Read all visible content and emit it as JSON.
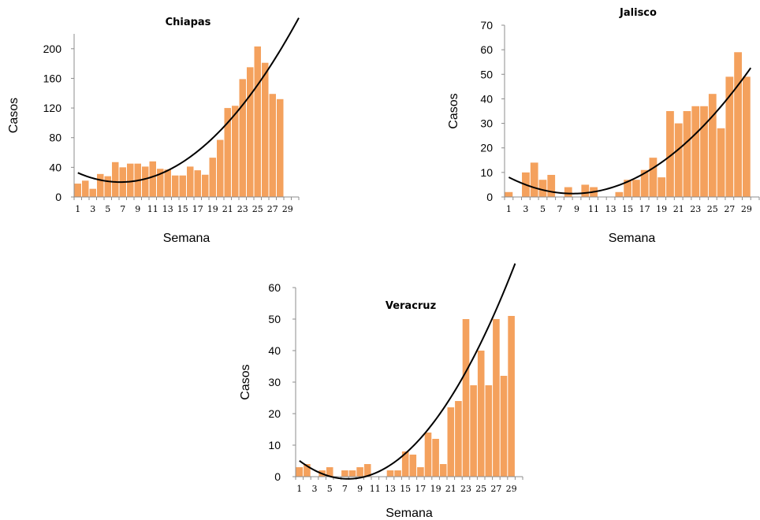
{
  "chart_data": [
    {
      "type": "bar",
      "title": "Chiapas",
      "xlabel": "Semana",
      "ylabel": "Casos",
      "ylim": [
        0,
        220
      ],
      "yticks": [
        0,
        40,
        80,
        120,
        160,
        200
      ],
      "xtick_labels": [
        "1",
        "3",
        "5",
        "7",
        "9",
        "11",
        "13",
        "15",
        "17",
        "19",
        "21",
        "23",
        "25",
        "27",
        "29"
      ],
      "weeks": [
        1,
        2,
        3,
        4,
        5,
        6,
        7,
        8,
        9,
        10,
        11,
        12,
        13,
        14,
        15,
        16,
        17,
        18,
        19,
        20,
        21,
        22,
        23,
        24,
        25,
        26,
        27,
        28
      ],
      "values": [
        18,
        22,
        11,
        31,
        28,
        47,
        40,
        45,
        45,
        41,
        48,
        38,
        37,
        29,
        29,
        41,
        36,
        30,
        53,
        77,
        120,
        123,
        159,
        175,
        203,
        181,
        139,
        132
      ],
      "trendline": {
        "type": "polynomial-2",
        "from_week": 1,
        "to_week": 30.5,
        "coef": [
          37.4,
          -5.2,
          0.39
        ]
      },
      "bar_color": "#f4a15d"
    },
    {
      "type": "bar",
      "title": "Jalisco",
      "xlabel": "Semana",
      "ylabel": "Casos",
      "ylim": [
        0,
        70
      ],
      "yticks": [
        0,
        10,
        20,
        30,
        40,
        50,
        60,
        70
      ],
      "xtick_labels": [
        "1",
        "3",
        "5",
        "7",
        "9",
        "11",
        "13",
        "15",
        "17",
        "19",
        "21",
        "23",
        "25",
        "27",
        "29"
      ],
      "weeks": [
        1,
        2,
        3,
        4,
        5,
        6,
        7,
        8,
        9,
        10,
        11,
        12,
        13,
        14,
        15,
        16,
        17,
        18,
        19,
        20,
        21,
        22,
        23,
        24,
        25,
        26,
        27,
        28,
        29
      ],
      "values": [
        2,
        0,
        10,
        14,
        7,
        9,
        0,
        4,
        0,
        5,
        4,
        0,
        0,
        2,
        7,
        7,
        11,
        16,
        8,
        35,
        30,
        35,
        37,
        37,
        42,
        28,
        49,
        59,
        49
      ],
      "trendline": {
        "type": "polynomial-2",
        "from_week": 1,
        "to_week": 29.5,
        "coef": [
          9.92,
          -1.996,
          0.1167
        ]
      },
      "bar_color": "#f4a15d"
    },
    {
      "type": "bar",
      "title": "Veracruz",
      "xlabel": "Semana",
      "ylabel": "Casos",
      "ylim": [
        0,
        60
      ],
      "yticks": [
        0,
        10,
        20,
        30,
        40,
        50,
        60
      ],
      "xtick_labels": [
        "1",
        "3",
        "5",
        "7",
        "9",
        "11",
        "13",
        "15",
        "17",
        "19",
        "21",
        "23",
        "25",
        "27",
        "29"
      ],
      "weeks": [
        1,
        2,
        3,
        4,
        5,
        6,
        7,
        8,
        9,
        10,
        11,
        12,
        13,
        14,
        15,
        16,
        17,
        18,
        19,
        20,
        21,
        22,
        23,
        24,
        25,
        26,
        27,
        28,
        29
      ],
      "values": [
        3,
        4,
        0,
        2,
        3,
        0,
        2,
        2,
        3,
        4,
        0,
        0,
        2,
        2,
        8,
        7,
        3,
        14,
        12,
        4,
        22,
        24,
        50,
        29,
        40,
        29,
        50,
        32,
        51
      ],
      "trendline": {
        "type": "polynomial-2",
        "from_week": 1,
        "to_week": 29.5,
        "coef": [
          6.99,
          -2.075,
          0.14
        ]
      },
      "bar_color": "#f4a15d"
    }
  ]
}
